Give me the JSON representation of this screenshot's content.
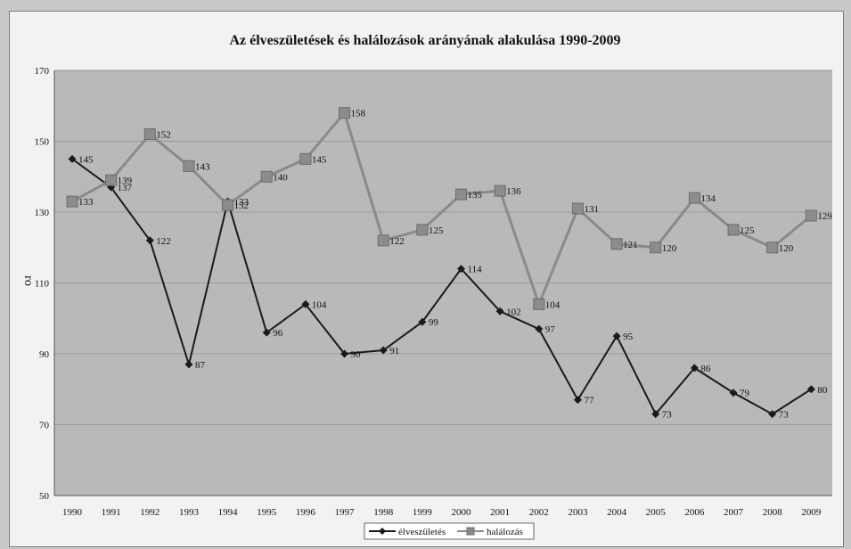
{
  "chart_data": {
    "type": "line",
    "title": "Az élveszületések és halálozások arányának alakulása 1990-2009",
    "ylabel": "ro",
    "categories": [
      "1990",
      "1991",
      "1992",
      "1993",
      "1994",
      "1995",
      "1996",
      "1997",
      "1998",
      "1999",
      "2000",
      "2001",
      "2002",
      "2003",
      "2004",
      "2005",
      "2006",
      "2007",
      "2008",
      "2009"
    ],
    "ylim": [
      50,
      170
    ],
    "yticks": [
      50,
      70,
      90,
      110,
      130,
      150,
      170
    ],
    "grid": true,
    "legend_position": "bottom",
    "series": [
      {
        "name": "élveszületés",
        "marker": "diamond",
        "color": "#1a1a1a",
        "values": [
          145,
          137,
          122,
          87,
          133,
          96,
          104,
          90,
          91,
          99,
          114,
          102,
          97,
          77,
          95,
          73,
          86,
          79,
          73,
          80
        ]
      },
      {
        "name": "halálozás",
        "marker": "square",
        "color": "#8a8a8a",
        "values": [
          133,
          139,
          152,
          143,
          132,
          140,
          145,
          158,
          122,
          125,
          135,
          136,
          104,
          131,
          121,
          120,
          134,
          125,
          120,
          129
        ]
      }
    ],
    "plot_background": "#b9b9b9"
  }
}
